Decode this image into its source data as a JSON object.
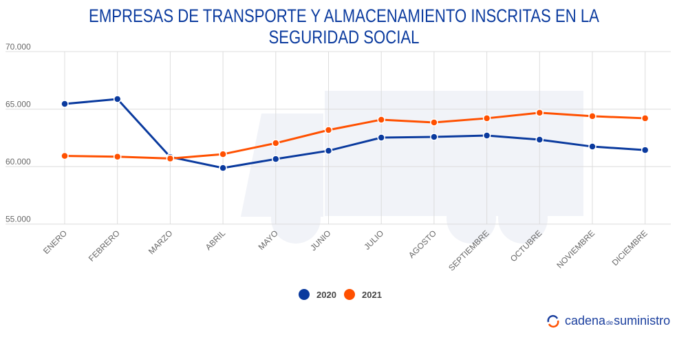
{
  "chart_data": {
    "type": "line",
    "title": "EMPRESAS DE TRANSPORTE Y ALMACENAMIENTO INSCRITAS EN LA SEGURIDAD SOCIAL",
    "categories": [
      "ENERO",
      "FEBRERO",
      "MARZO",
      "ABRIL",
      "MAYO",
      "JUNIO",
      "JULIO",
      "AGOSTO",
      "SEPTIEMBRE",
      "OCTUBRE",
      "NOVIEMBRE",
      "DICIEMBRE"
    ],
    "series": [
      {
        "name": "2020",
        "color": "#0a3a9e",
        "values": [
          65450,
          65870,
          60840,
          59880,
          60660,
          61380,
          62520,
          62580,
          62700,
          62340,
          61740,
          61440
        ]
      },
      {
        "name": "2021",
        "color": "#ff5000",
        "values": [
          60930,
          60860,
          60700,
          61080,
          62040,
          63180,
          64080,
          63840,
          64200,
          64680,
          64380,
          64200
        ]
      }
    ],
    "yticks": [
      "55.000",
      "60.000",
      "65.000",
      "70.000"
    ],
    "ylim": [
      55000,
      70000
    ],
    "grid": true,
    "legend": "bottom-center"
  },
  "brand": {
    "name_a": "cadena",
    "name_de": "de",
    "name_b": "suministro"
  }
}
